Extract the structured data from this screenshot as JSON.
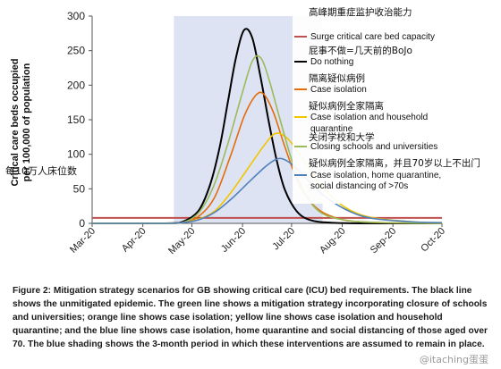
{
  "chart_data": {
    "type": "line",
    "title": "",
    "xlabel": "",
    "ylabel": "Critical care beds occupied per 100,000 of population",
    "ylabel_lines": [
      "Critical care beds occupied",
      "per 100,000 of population"
    ],
    "ylabel_cn": "每10万人床位数",
    "x_ticks": [
      "Mar-20",
      "Apr-20",
      "May-20",
      "Jun-20",
      "Jul-20",
      "Aug-20",
      "Sep-20",
      "Oct-20"
    ],
    "x_tick_dates": [
      "2020-03-01",
      "2020-04-01",
      "2020-05-01",
      "2020-06-01",
      "2020-07-01",
      "2020-08-01",
      "2020-09-01",
      "2020-10-01"
    ],
    "xlim": [
      "2020-03-01",
      "2020-10-01"
    ],
    "ylim": [
      0,
      300
    ],
    "y_ticks": [
      0,
      50,
      100,
      150,
      200,
      250,
      300
    ],
    "grid": false,
    "legend_position": "right",
    "shaded_region": {
      "x_start": "2020-04-20",
      "x_end": "2020-07-20",
      "color": "#dde3f3"
    },
    "series": [
      {
        "name": "Surge critical care bed capacity",
        "name_cn": "高峰期重症监护收治能力",
        "color": "#c0504d",
        "style": "hline",
        "y": 8
      },
      {
        "name": "Do nothing",
        "name_cn": "屁事不做=几天前的BoJo",
        "color": "#000000",
        "x": [
          "2020-04-25",
          "2020-05-05",
          "2020-05-12",
          "2020-05-18",
          "2020-05-23",
          "2020-05-28",
          "2020-06-02",
          "2020-06-07",
          "2020-06-12",
          "2020-06-17",
          "2020-06-22",
          "2020-06-27",
          "2020-07-04",
          "2020-07-12",
          "2020-07-25",
          "2020-08-15",
          "2020-10-01"
        ],
        "y": [
          2,
          18,
          55,
          110,
          175,
          240,
          280,
          268,
          212,
          148,
          90,
          48,
          18,
          5,
          1,
          0,
          0
        ]
      },
      {
        "name": "Case isolation",
        "name_cn": "隔离疑似病例",
        "color": "#e36c09",
        "x": [
          "2020-04-25",
          "2020-05-05",
          "2020-05-15",
          "2020-05-25",
          "2020-06-02",
          "2020-06-09",
          "2020-06-14",
          "2020-06-20",
          "2020-06-27",
          "2020-07-05",
          "2020-07-15",
          "2020-07-28",
          "2020-08-15",
          "2020-10-01"
        ],
        "y": [
          1,
          10,
          38,
          100,
          155,
          185,
          187,
          160,
          110,
          60,
          25,
          8,
          2,
          0
        ]
      },
      {
        "name": "Case isolation and household quarantine",
        "name_cn": "疑似病例全家隔离",
        "color": "#f2c500",
        "x": [
          "2020-04-25",
          "2020-05-05",
          "2020-05-15",
          "2020-05-25",
          "2020-06-05",
          "2020-06-14",
          "2020-06-21",
          "2020-06-28",
          "2020-07-06",
          "2020-07-15",
          "2020-07-25",
          "2020-08-05",
          "2020-08-20",
          "2020-09-15",
          "2020-10-01"
        ],
        "y": [
          1,
          6,
          18,
          45,
          82,
          112,
          130,
          124,
          100,
          68,
          40,
          20,
          8,
          2,
          1
        ]
      },
      {
        "name": "Closing schools and universities",
        "name_cn": "关闭学校和大学",
        "color": "#9bbb59",
        "x": [
          "2020-04-25",
          "2020-05-05",
          "2020-05-14",
          "2020-05-23",
          "2020-06-01",
          "2020-06-07",
          "2020-06-12",
          "2020-06-17",
          "2020-06-24",
          "2020-07-02",
          "2020-07-10",
          "2020-07-20",
          "2020-08-05",
          "2020-08-25",
          "2020-10-01"
        ],
        "y": [
          1,
          15,
          52,
          115,
          190,
          235,
          240,
          210,
          150,
          85,
          40,
          14,
          4,
          1,
          0
        ]
      },
      {
        "name": "Case isolation, home quarantine, social distancing of >70s",
        "name_cn": "疑似病例全家隔离，并且70岁以上不出门",
        "color": "#4f81bd",
        "x": [
          "2020-04-25",
          "2020-05-05",
          "2020-05-15",
          "2020-05-25",
          "2020-06-05",
          "2020-06-14",
          "2020-06-21",
          "2020-06-26",
          "2020-07-03",
          "2020-07-12",
          "2020-07-22",
          "2020-08-05",
          "2020-08-20",
          "2020-09-15",
          "2020-10-01"
        ],
        "y": [
          1,
          5,
          16,
          35,
          60,
          80,
          92,
          93,
          82,
          60,
          38,
          18,
          7,
          2,
          1
        ]
      }
    ],
    "legend": [
      {
        "cn": "高峰期重症监护收治能力",
        "en": [
          "Surge critical care bed capacity"
        ],
        "color": "#c0504d"
      },
      {
        "cn": "屁事不做=几天前的BoJo",
        "en": [
          "Do nothing"
        ],
        "color": "#000000"
      },
      {
        "cn": "隔离疑似病例",
        "en": [
          "Case isolation"
        ],
        "color": "#e36c09"
      },
      {
        "cn": "疑似病例全家隔离",
        "en": [
          "Case isolation and household",
          "quarantine"
        ],
        "color": "#f2c500"
      },
      {
        "cn": "关闭学校和大学",
        "en": [
          "Closing schools and universities"
        ],
        "color": "#9bbb59"
      },
      {
        "cn": "疑似病例全家隔离，并且70岁以上不出门",
        "en": [
          "Case isolation, home quarantine,",
          "social distancing of >70s"
        ],
        "color": "#4f81bd"
      }
    ]
  },
  "caption": "Figure 2: Mitigation strategy scenarios for GB showing critical care (ICU) bed requirements. The black line shows the unmitigated epidemic. The green line shows a mitigation strategy incorporating closure of schools and universities; orange line shows case isolation; yellow line shows case isolation and household quarantine; and the blue line shows case isolation, home quarantine and social distancing of those aged over 70. The blue shading shows the 3-month period in which these interventions are assumed to remain in place.",
  "watermark": "@itaching蛋蛋"
}
